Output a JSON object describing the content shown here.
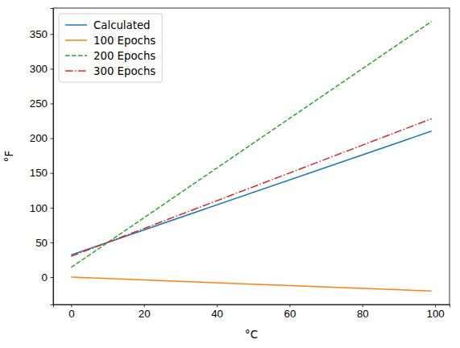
{
  "chart_data": {
    "type": "line",
    "x_label": "°C",
    "y_label": "°F",
    "xlim": [
      -4.95,
      103.95
    ],
    "xticks": [
      0,
      20,
      40,
      60,
      80,
      100
    ],
    "ylim": [
      -39.4,
      387.4
    ],
    "yticks": [
      0,
      50,
      100,
      150,
      200,
      250,
      300,
      350
    ],
    "legend": "upper left",
    "series": [
      {
        "name": "Calculated",
        "color": "#1f77b4",
        "line_style": "solid",
        "x": [
          0,
          99
        ],
        "values": [
          32,
          210.2
        ]
      },
      {
        "name": "100 Epochs",
        "color": "#ff7f0e",
        "line_style": "solid",
        "x": [
          0,
          99
        ],
        "values": [
          0,
          -20
        ]
      },
      {
        "name": "200 Epochs",
        "color": "#2ca02c",
        "line_style": "dashed",
        "x": [
          0,
          99
        ],
        "values": [
          14,
          368
        ]
      },
      {
        "name": "300 Epochs",
        "color": "#d62728",
        "line_style": "dashdot",
        "x": [
          0,
          99
        ],
        "values": [
          30,
          228
        ]
      }
    ]
  }
}
